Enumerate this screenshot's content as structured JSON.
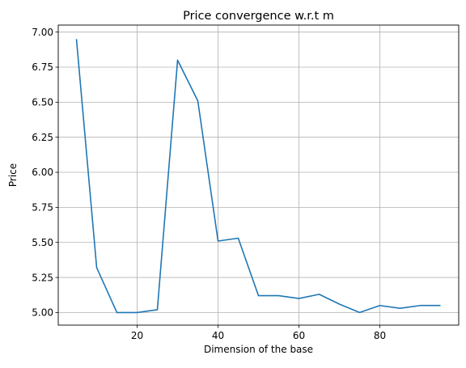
{
  "chart_data": {
    "type": "line",
    "title": "Price convergence w.r.t m",
    "xlabel": "Dimension of the base",
    "ylabel": "Price",
    "xlim": [
      0.5,
      99.5
    ],
    "ylim": [
      4.91,
      7.05
    ],
    "grid": true,
    "x_ticks": [
      20,
      40,
      60,
      80
    ],
    "y_ticks": [
      5.0,
      5.25,
      5.5,
      5.75,
      6.0,
      6.25,
      6.5,
      6.75,
      7.0
    ],
    "x_tick_labels": [
      "20",
      "40",
      "60",
      "80"
    ],
    "y_tick_labels": [
      "5.00",
      "5.25",
      "5.50",
      "5.75",
      "6.00",
      "6.25",
      "6.50",
      "6.75",
      "7.00"
    ],
    "series": [
      {
        "color": "#1f77b4",
        "x": [
          5,
          10,
          15,
          20,
          25,
          30,
          35,
          40,
          45,
          50,
          55,
          60,
          65,
          70,
          75,
          80,
          85,
          90,
          95
        ],
        "y": [
          6.95,
          5.32,
          5.0,
          5.0,
          5.02,
          6.8,
          6.51,
          5.51,
          5.53,
          5.12,
          5.12,
          5.1,
          5.13,
          5.06,
          5.0,
          5.05,
          5.03,
          5.05,
          5.05
        ]
      }
    ]
  }
}
